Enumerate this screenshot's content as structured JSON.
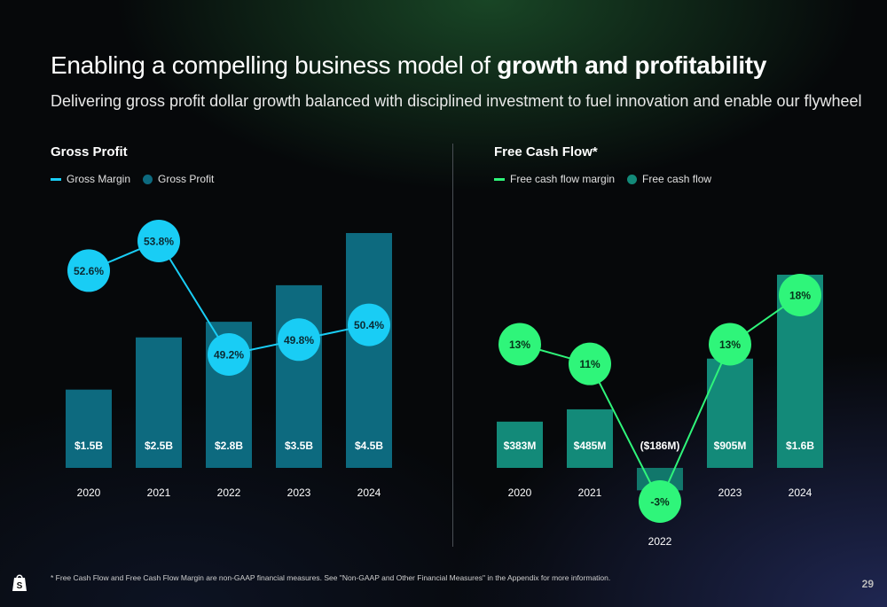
{
  "slide": {
    "title_regular": "Enabling a compelling business model of ",
    "title_bold": "growth and profitability",
    "subtitle": "Delivering gross profit dollar growth balanced with disciplined investment to fuel innovation and enable our flywheel",
    "footnote": "* Free Cash Flow and Free Cash Flow Margin are non-GAAP financial measures. See \"Non-GAAP and Other Financial Measures\" in the Appendix for more information.",
    "page_number": "29",
    "logo_icon": "shopify-bag-icon"
  },
  "colors": {
    "gp_bar": "#0d6a7f",
    "gp_line": "#19cdf5",
    "fcf_bar": "#138a79",
    "fcf_line": "#2ff57a"
  },
  "chart_data": [
    {
      "type": "bar",
      "title": "Gross Profit",
      "categories": [
        "2020",
        "2021",
        "2022",
        "2023",
        "2024"
      ],
      "legend": {
        "position": "top-left",
        "line_label": "Gross Margin",
        "bar_label": "Gross Profit"
      },
      "series": [
        {
          "name": "Gross Profit",
          "kind": "bar",
          "values": [
            1.5,
            2.5,
            2.8,
            3.5,
            4.5
          ],
          "labels": [
            "$1.5B",
            "$2.5B",
            "$2.8B",
            "$3.5B",
            "$4.5B"
          ]
        },
        {
          "name": "Gross Margin",
          "kind": "line",
          "values": [
            52.6,
            53.8,
            49.2,
            49.8,
            50.4
          ],
          "labels": [
            "52.6%",
            "53.8%",
            "49.2%",
            "49.8%",
            "50.4%"
          ]
        }
      ],
      "ylim": [
        0,
        4.5
      ],
      "grid": false
    },
    {
      "type": "bar",
      "title": "Free Cash Flow*",
      "categories": [
        "2020",
        "2021",
        "2022",
        "2023",
        "2024"
      ],
      "legend": {
        "position": "top-left",
        "line_label": "Free cash flow margin",
        "bar_label": "Free cash flow"
      },
      "series": [
        {
          "name": "Free cash flow",
          "kind": "bar",
          "values": [
            383,
            485,
            -186,
            905,
            1600
          ],
          "labels": [
            "$383M",
            "$485M",
            "($186M)",
            "$905M",
            "$1.6B"
          ]
        },
        {
          "name": "Free cash flow margin",
          "kind": "line",
          "values": [
            13,
            11,
            -3,
            13,
            18
          ],
          "labels": [
            "13%",
            "11%",
            "-3%",
            "13%",
            "18%"
          ]
        }
      ],
      "ylim": [
        -186,
        1600
      ],
      "grid": false
    }
  ]
}
